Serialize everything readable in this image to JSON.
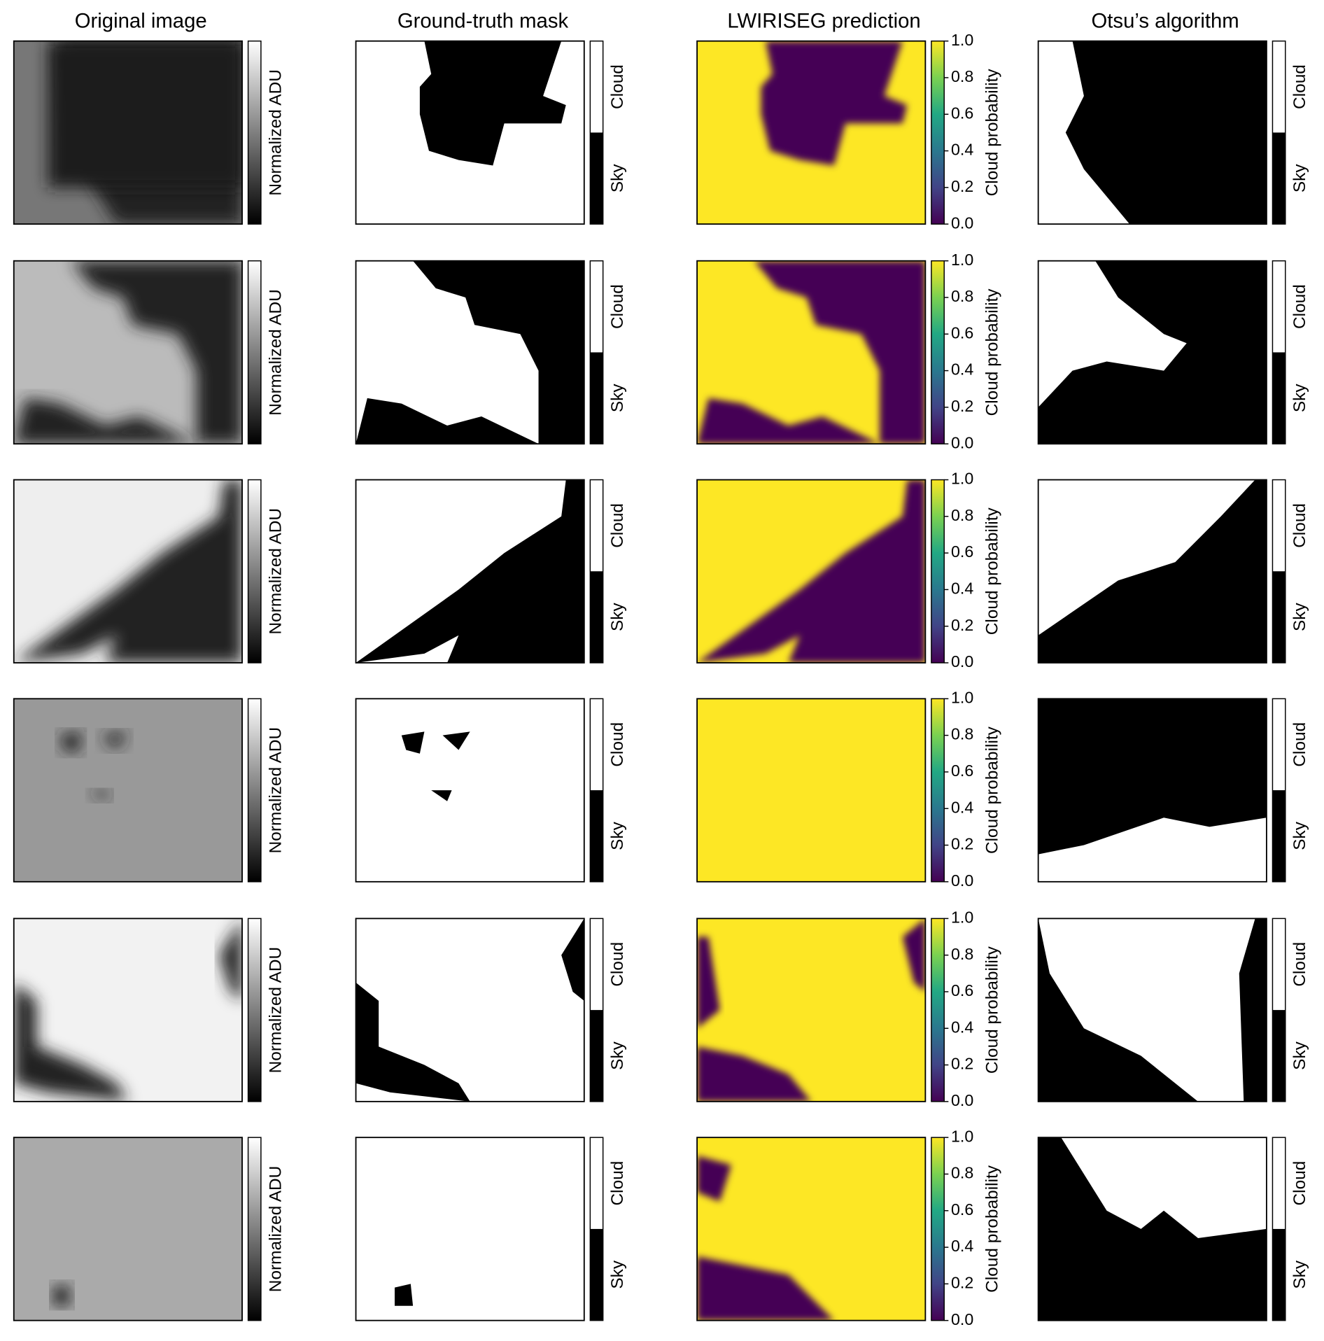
{
  "columns": [
    {
      "title": "Original image",
      "colorbar": {
        "label": "Normalized ADU"
      }
    },
    {
      "title": "Ground-truth mask",
      "colorbar": {
        "tick_labels": [
          "Sky",
          "Cloud"
        ]
      }
    },
    {
      "title": "LWIRISEG prediction",
      "colorbar": {
        "label": "Cloud probability",
        "ticks": [
          {
            "value": 0,
            "label": "0.0"
          },
          {
            "value": 0.2,
            "label": "0.2"
          },
          {
            "value": 0.4,
            "label": "0.4"
          },
          {
            "value": 0.6,
            "label": "0.6"
          },
          {
            "value": 0.8,
            "label": "0.8"
          },
          {
            "value": 1,
            "label": "1.0"
          }
        ],
        "lim": [
          0,
          1
        ]
      }
    },
    {
      "title": "Otsu’s algorithm",
      "colorbar": {
        "tick_labels": [
          "Sky",
          "Cloud"
        ]
      }
    }
  ]
}
